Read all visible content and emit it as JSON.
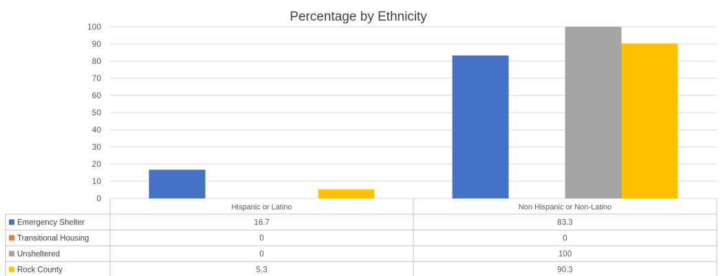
{
  "chart_data": {
    "type": "bar",
    "title": "Percentage by Ethnicity",
    "categories": [
      "Hispanic or Latino",
      "Non Hispanic or Non-Latino"
    ],
    "ylim": [
      0,
      100
    ],
    "yticks": [
      0,
      10,
      20,
      30,
      40,
      50,
      60,
      70,
      80,
      90,
      100
    ],
    "grid": true,
    "legend": "data-table-below",
    "series": [
      {
        "name": "Emergency Shelter",
        "values": [
          16.7,
          83.3
        ],
        "color": "#4472c4",
        "labels": [
          "16.7",
          "83.3"
        ]
      },
      {
        "name": "Transitional Housing",
        "values": [
          0,
          0
        ],
        "color": "#ed7d31",
        "labels": [
          "0",
          "0"
        ]
      },
      {
        "name": "Unsheltered",
        "values": [
          0,
          100
        ],
        "color": "#a5a5a5",
        "labels": [
          "0",
          "100"
        ]
      },
      {
        "name": "Rock County",
        "values": [
          5.3,
          90.3
        ],
        "color": "#ffc000",
        "labels": [
          "5.3",
          "90.3"
        ]
      }
    ]
  }
}
